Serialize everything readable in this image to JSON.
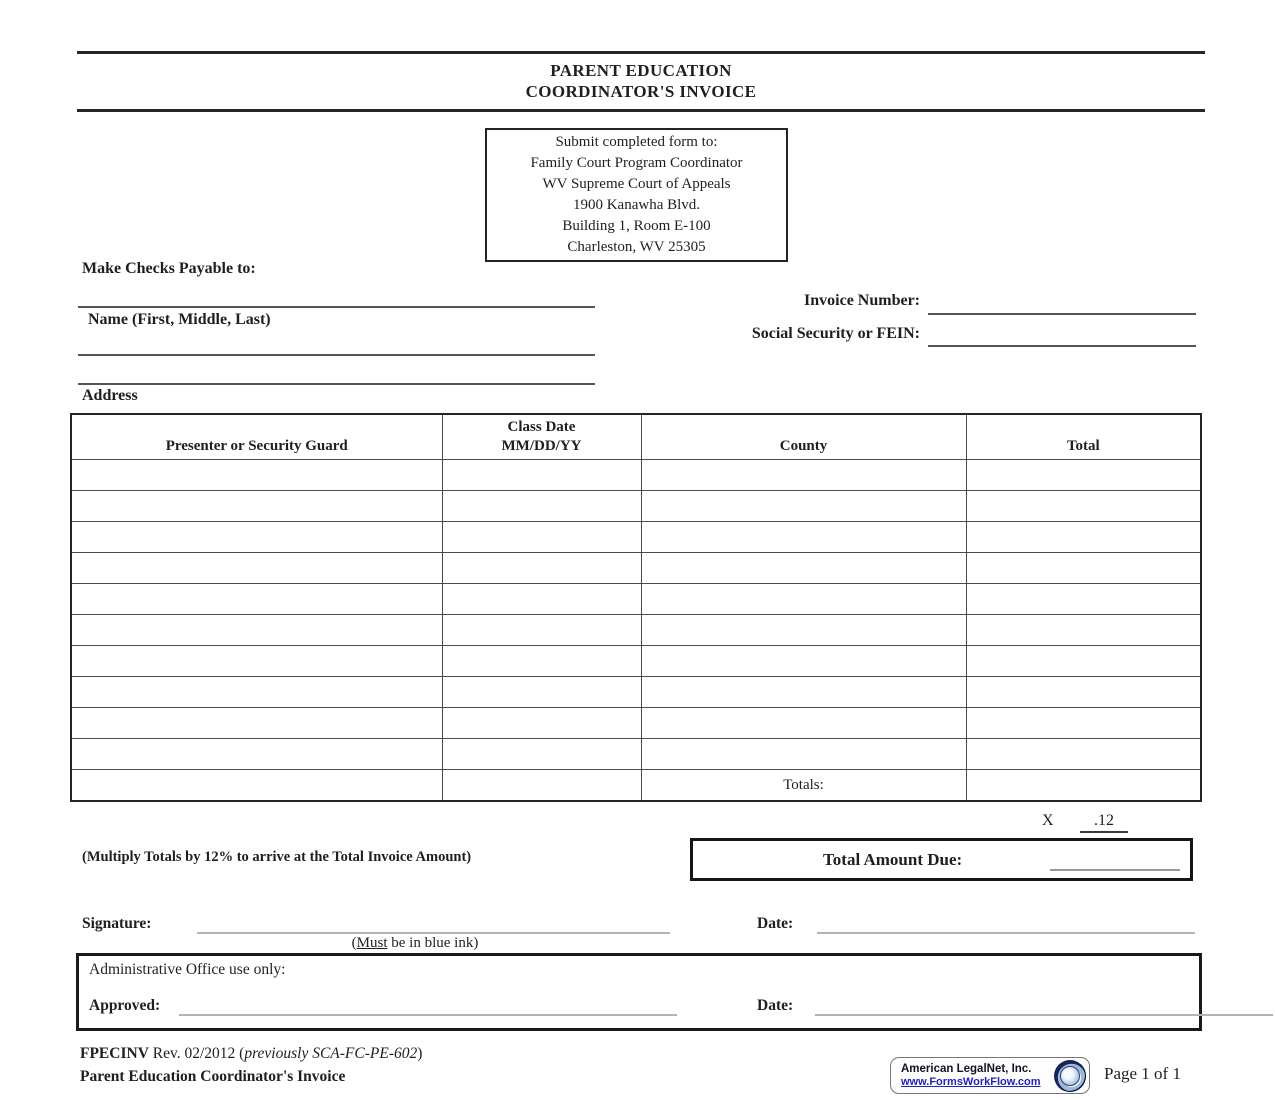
{
  "title": {
    "line1": "PARENT EDUCATION",
    "line2": "COORDINATOR'S INVOICE"
  },
  "submit_box": {
    "lines": [
      "Submit completed form to:",
      "Family Court Program Coordinator",
      "WV Supreme Court of Appeals",
      "1900 Kanawha Blvd.",
      "Building 1, Room E-100",
      "Charleston, WV 25305"
    ]
  },
  "payee": {
    "make_checks_label": "Make Checks Payable to:",
    "name_label": "Name (First, Middle, Last)",
    "address_label": "Address"
  },
  "invoice_fields": {
    "invoice_number_label": "Invoice Number:",
    "ssn_fein_label": "Social Security or FEIN:"
  },
  "table": {
    "headers": {
      "presenter": "Presenter or Security Guard",
      "class_date_line1": "Class Date",
      "class_date_line2": "MM/DD/YY",
      "county": "County",
      "total": "Total"
    },
    "empty_row_count": 10,
    "totals_label": "Totals:"
  },
  "multiplier": {
    "x_label": "X",
    "rate": ".12"
  },
  "total_due": {
    "note": "(Multiply Totals by 12% to arrive at the Total Invoice Amount)",
    "label": "Total Amount Due:"
  },
  "signature": {
    "label": "Signature:",
    "note_open": "(",
    "note_must": "Must",
    "note_rest": " be in blue ink)",
    "date_label": "Date:"
  },
  "admin": {
    "title": "Administrative Office use only:",
    "approved_label": "Approved:",
    "date_label": "Date:"
  },
  "footer": {
    "form_code": "FPECINV",
    "revision_text": " Rev. 02/2012 (",
    "previous_italic": "previously SCA-FC-PE-602",
    "close_paren": ")",
    "form_title": "Parent Education Coordinator's Invoice",
    "legalnet_name": "American LegalNet, Inc.",
    "legalnet_url": "www.FormsWorkFlow.com",
    "page_label": "Page 1 of 1"
  },
  "colors": {
    "ink": "#1f1f1f",
    "field_line": "#555555",
    "blank_line_gray": "#b3b3b3",
    "link_blue": "#2222bb",
    "globe_navy": "#17255c"
  }
}
